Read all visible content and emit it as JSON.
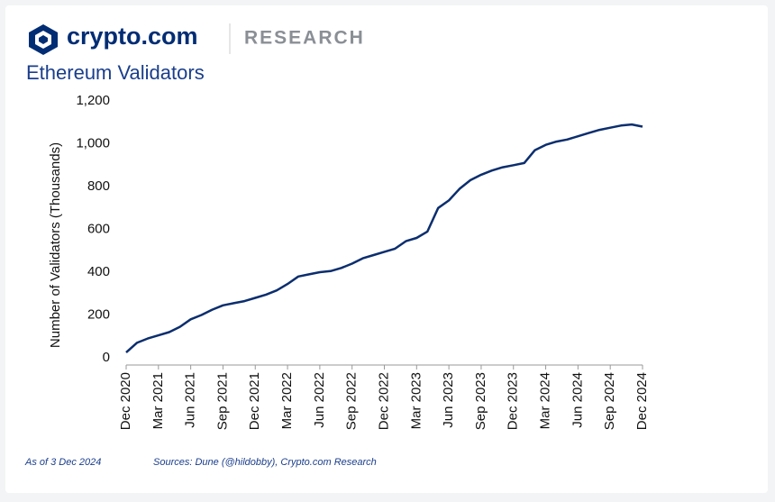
{
  "header": {
    "brand": "crypto.com",
    "section": "RESEARCH"
  },
  "chart_data": {
    "type": "line",
    "title": "Ethereum Validators",
    "y_label": "Number of Validators (Thousands)",
    "x": [
      "2020-12",
      "2021-01",
      "2021-02",
      "2021-03",
      "2021-04",
      "2021-05",
      "2021-06",
      "2021-07",
      "2021-08",
      "2021-09",
      "2021-10",
      "2021-11",
      "2021-12",
      "2022-01",
      "2022-02",
      "2022-03",
      "2022-04",
      "2022-05",
      "2022-06",
      "2022-07",
      "2022-08",
      "2022-09",
      "2022-10",
      "2022-11",
      "2022-12",
      "2023-01",
      "2023-02",
      "2023-03",
      "2023-04",
      "2023-05",
      "2023-06",
      "2023-07",
      "2023-08",
      "2023-09",
      "2023-10",
      "2023-11",
      "2023-12",
      "2024-01",
      "2024-02",
      "2024-03",
      "2024-04",
      "2024-05",
      "2024-06",
      "2024-07",
      "2024-08",
      "2024-09",
      "2024-10",
      "2024-11",
      "2024-12"
    ],
    "values": [
      25,
      70,
      90,
      105,
      120,
      145,
      180,
      200,
      225,
      245,
      255,
      265,
      280,
      295,
      315,
      345,
      380,
      390,
      400,
      405,
      420,
      440,
      465,
      480,
      495,
      510,
      545,
      560,
      590,
      700,
      735,
      790,
      830,
      855,
      875,
      890,
      900,
      910,
      970,
      995,
      1010,
      1020,
      1035,
      1050,
      1065,
      1075,
      1085,
      1090,
      1080
    ],
    "color": "#0b2e6e",
    "xlim": [
      "2020-12",
      "2024-12"
    ],
    "xticks": [
      {
        "value": "2020-12",
        "label": "Dec 2020"
      },
      {
        "value": "2021-03",
        "label": "Mar 2021"
      },
      {
        "value": "2021-06",
        "label": "Jun 2021"
      },
      {
        "value": "2021-09",
        "label": "Sep 2021"
      },
      {
        "value": "2021-12",
        "label": "Dec 2021"
      },
      {
        "value": "2022-03",
        "label": "Mar 2022"
      },
      {
        "value": "2022-06",
        "label": "Jun 2022"
      },
      {
        "value": "2022-09",
        "label": "Sep 2022"
      },
      {
        "value": "2022-12",
        "label": "Dec 2022"
      },
      {
        "value": "2023-03",
        "label": "Mar 2023"
      },
      {
        "value": "2023-06",
        "label": "Jun 2023"
      },
      {
        "value": "2023-09",
        "label": "Sep 2023"
      },
      {
        "value": "2023-12",
        "label": "Dec 2023"
      },
      {
        "value": "2024-03",
        "label": "Mar 2024"
      },
      {
        "value": "2024-06",
        "label": "Jun 2024"
      },
      {
        "value": "2024-09",
        "label": "Sep 2024"
      },
      {
        "value": "2024-12",
        "label": "Dec 2024"
      }
    ],
    "ylim": [
      0,
      1200
    ],
    "yticks": [
      0,
      200,
      400,
      600,
      800,
      {
        "value": 1000,
        "label": "1,000"
      },
      {
        "value": 1200,
        "label": "1,200"
      }
    ],
    "grid": false,
    "notes": [
      "As of 3 Dec 2024",
      "Sources: Dune (@hildobby), Crypto.com Research"
    ]
  }
}
